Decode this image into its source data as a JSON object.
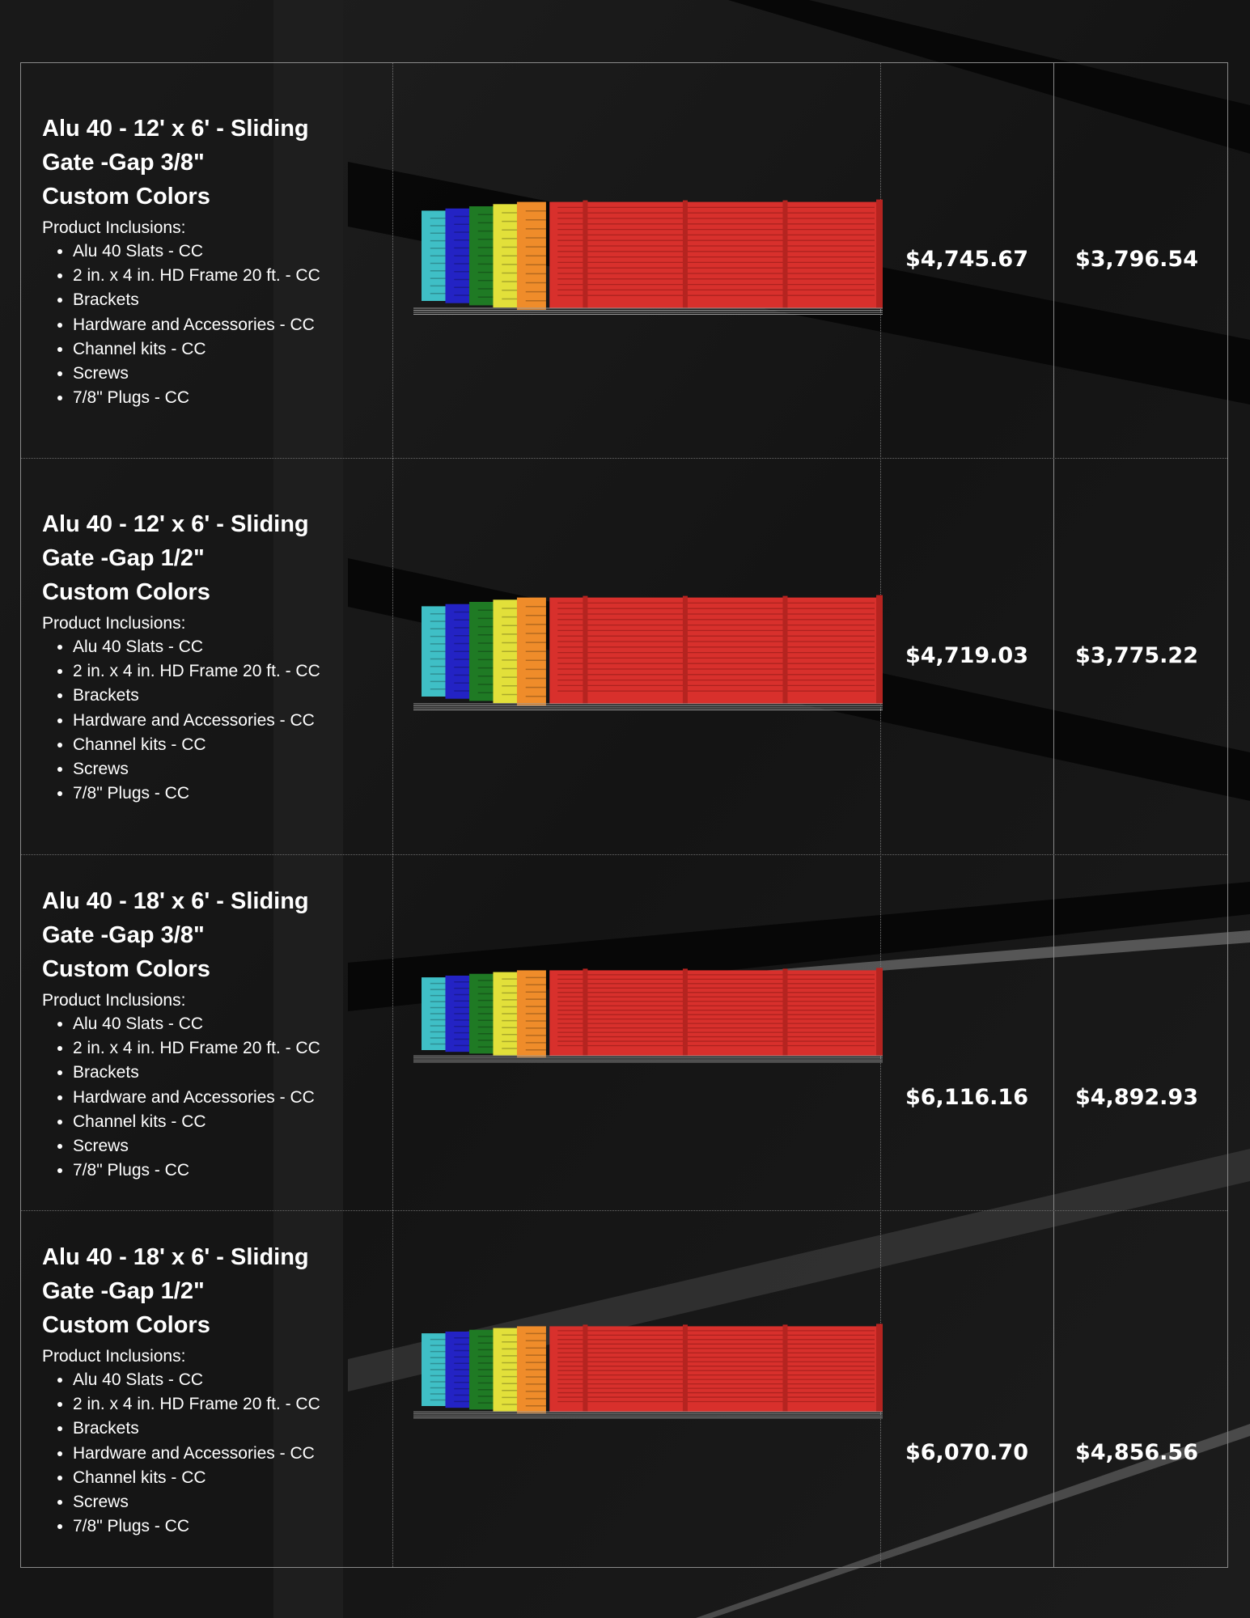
{
  "colors": {
    "background": "#161616",
    "border": "#8a8a8a",
    "gate_swatches": [
      "#3fbfc6",
      "#2323c4",
      "#1f7a24",
      "#e2e03a",
      "#ef8c2a"
    ],
    "gate_main": "#d8302c"
  },
  "products": [
    {
      "title_line1": "Alu 40 - 12' x 6' - Sliding",
      "title_line2": "Gate -Gap 3/8\"",
      "title_line3": "Custom Colors",
      "inclusions_label": "Product Inclusions:",
      "inclusions": [
        "Alu 40 Slats - CC",
        "2 in. x 4 in. HD Frame 20 ft. - CC",
        "Brackets",
        "Hardware and Accessories - CC",
        "Channel kits - CC",
        "Screws",
        "7/8\" Plugs - CC"
      ],
      "price_regular": "$4,745.67",
      "price_sale": "$3,796.54",
      "image_icon": "sliding-gate-icon"
    },
    {
      "title_line1": "Alu 40 - 12' x 6' - Sliding",
      "title_line2": "Gate -Gap 1/2\"",
      "title_line3": "Custom Colors",
      "inclusions_label": "Product Inclusions:",
      "inclusions": [
        "Alu 40 Slats - CC",
        "2 in. x 4 in. HD Frame 20 ft. - CC",
        "Brackets",
        "Hardware and Accessories - CC",
        "Channel kits - CC",
        "Screws",
        "7/8\" Plugs - CC"
      ],
      "price_regular": "$4,719.03",
      "price_sale": "$3,775.22",
      "image_icon": "sliding-gate-icon"
    },
    {
      "title_line1": "Alu 40 - 18' x 6' - Sliding",
      "title_line2": "Gate -Gap 3/8\"",
      "title_line3": "Custom Colors",
      "inclusions_label": "Product Inclusions:",
      "inclusions": [
        "Alu 40 Slats - CC",
        "2 in. x 4 in. HD Frame 20 ft. - CC",
        "Brackets",
        "Hardware and Accessories - CC",
        "Channel kits - CC",
        "Screws",
        "7/8\" Plugs - CC"
      ],
      "price_regular": "$6,116.16",
      "price_sale": "$4,892.93",
      "image_icon": "sliding-gate-icon"
    },
    {
      "title_line1": "Alu 40 - 18' x 6' - Sliding",
      "title_line2": "Gate -Gap 1/2\"",
      "title_line3": "Custom Colors",
      "inclusions_label": "Product Inclusions:",
      "inclusions": [
        "Alu 40 Slats - CC",
        "2 in. x 4 in. HD Frame 20 ft. - CC",
        "Brackets",
        "Hardware and Accessories - CC",
        "Channel kits - CC",
        "Screws",
        "7/8\" Plugs - CC"
      ],
      "price_regular": "$6,070.70",
      "price_sale": "$4,856.56",
      "image_icon": "sliding-gate-icon"
    }
  ]
}
